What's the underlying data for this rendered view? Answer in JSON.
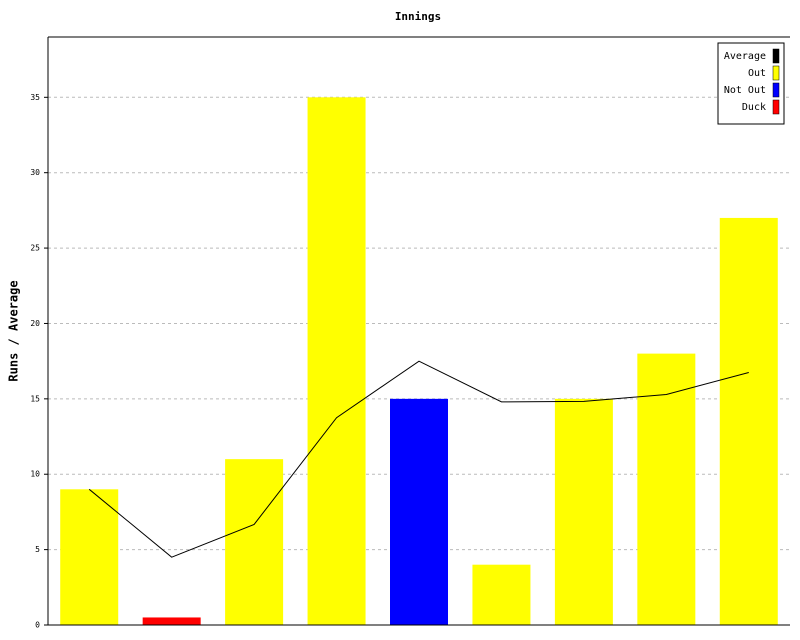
{
  "chart_data": {
    "type": "bar",
    "title": "Innings",
    "y_label": "Runs / Average",
    "categories": [
      null,
      null,
      null,
      null,
      null,
      null,
      null,
      null,
      null
    ],
    "series": [
      {
        "name": "Average",
        "type": "line",
        "color": "#000000",
        "values": [
          9,
          4.5,
          6.67,
          13.75,
          17.5,
          14.8,
          14.83,
          15.29,
          16.75
        ]
      },
      {
        "name": "Out",
        "color": "#ffff00",
        "values": [
          9,
          null,
          11,
          35,
          null,
          4,
          15,
          18,
          27
        ]
      },
      {
        "name": "Not Out",
        "color": "#0000ff",
        "values": [
          null,
          null,
          null,
          null,
          15,
          null,
          null,
          null,
          null
        ]
      },
      {
        "name": "Duck",
        "color": "#ff0000",
        "values": [
          null,
          0.5,
          null,
          null,
          null,
          null,
          null,
          null,
          null
        ]
      }
    ],
    "ylim": [
      0,
      39
    ],
    "yticks": [
      0,
      5,
      10,
      15,
      20,
      25,
      30,
      35
    ],
    "grid": true,
    "legend": "top-right"
  }
}
